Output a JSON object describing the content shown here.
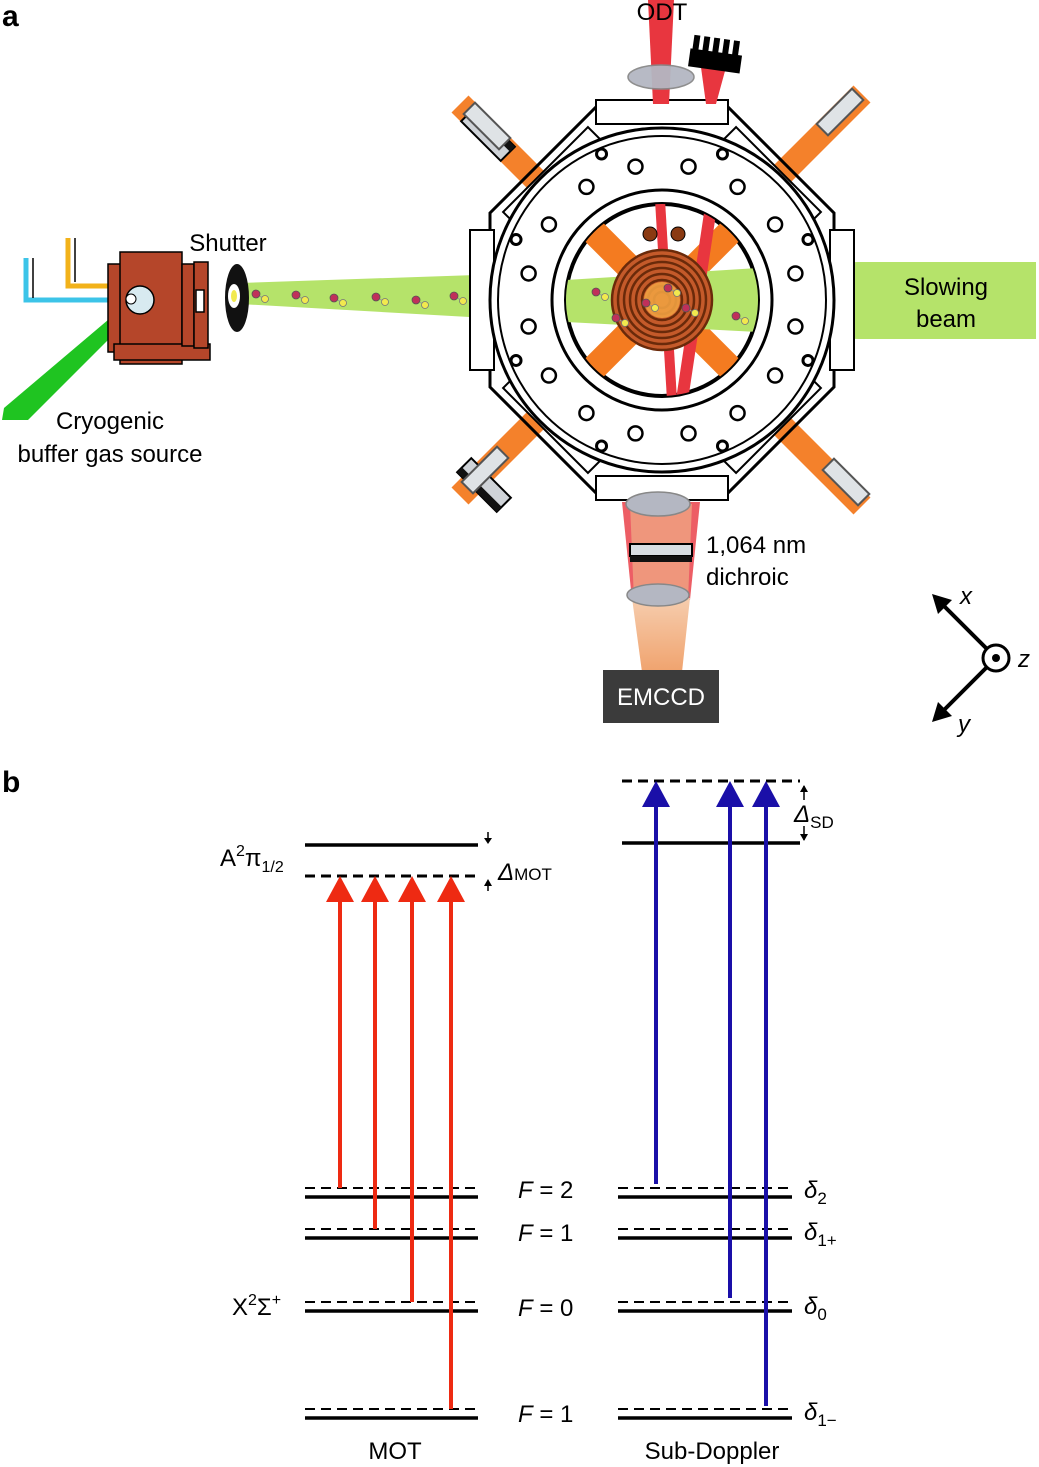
{
  "panel_a": {
    "letter": "a",
    "odt": "ODT",
    "shutter": "Shutter",
    "source_line1": "Cryogenic",
    "source_line2": "buffer gas source",
    "slowing_line1": "Slowing",
    "slowing_line2": "beam",
    "dichroic_line1": "1,064 nm",
    "dichroic_line2": "dichroic",
    "camera": "EMCCD",
    "axis_x": "x",
    "axis_y": "y",
    "axis_z": "z",
    "colors": {
      "source_body": "#b5462a",
      "slowing_beam": "#b5e36a",
      "mot_beam": "#f47b20",
      "odt_beam": "#e8363f",
      "coil": "#8a3a12",
      "source_line_blue": "#3cc4e8",
      "source_line_yellow": "#f2b21a",
      "green_cone": "#1fc421"
    }
  },
  "panel_b": {
    "letter": "b",
    "excited_state_base": "A",
    "excited_state_sup": "2",
    "excited_state_pi": "π",
    "excited_state_sub": "1/2",
    "ground_state_base": "X",
    "ground_state_sup": "2",
    "ground_state_sigma": "Σ",
    "ground_state_sup2": "+",
    "delta_mot_symbol": "Δ",
    "delta_mot_sub": "MOT",
    "delta_sd_symbol": "Δ",
    "delta_sd_sub": "SD",
    "levels": [
      {
        "F_label": "F",
        "F_value": " = 2",
        "delta_symbol": "δ",
        "delta_sub": "2"
      },
      {
        "F_label": "F",
        "F_value": " = 1",
        "delta_symbol": "δ",
        "delta_sub": "1+"
      },
      {
        "F_label": "F",
        "F_value": " = 0",
        "delta_symbol": "δ",
        "delta_sub": "0"
      },
      {
        "F_label": "F",
        "F_value": " = 1",
        "delta_symbol": "δ",
        "delta_sub": "1−"
      }
    ],
    "mot_caption": "MOT",
    "subdoppler_caption": "Sub-Doppler",
    "colors": {
      "mot_arrow": "#ee2a12",
      "sd_arrow": "#1a0fa8"
    }
  }
}
